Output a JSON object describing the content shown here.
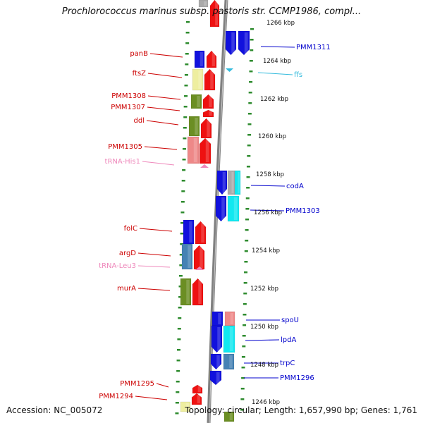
{
  "title": "Prochlorococcus marinus subsp. pastoris str. CCMP1986, compl...",
  "footer": {
    "accession": "Accession: NC_005072",
    "topology": "Topology: circular; Length: 1,657,990 bp; Genes: 1,761"
  },
  "colors": {
    "tick": "#2e8b2e",
    "backbone": "#808080",
    "label_red": "#cc0000",
    "label_blue": "#0000cc",
    "label_pink": "#ee88bb",
    "label_cyan": "#33bbdd",
    "gene_red": "#ee1111",
    "gene_blue": "#1111dd",
    "gene_green": "#6b8e23",
    "gene_yellow": "#eeeea0",
    "gene_pink": "#ee8888",
    "gene_cyan": "#11e8f0",
    "gene_steel": "#4682b4",
    "gene_gray": "#aaaaaa"
  },
  "scale_ticks": [
    "1266 kbp",
    "1264 kbp",
    "1262 kbp",
    "1260 kbp",
    "1258 kbp",
    "1256 kbp",
    "1254 kbp",
    "1252 kbp",
    "1250 kbp",
    "1248 kbp",
    "1246 kbp"
  ],
  "left_labels": [
    {
      "text": "panB",
      "color": "red"
    },
    {
      "text": "ftsZ",
      "color": "red"
    },
    {
      "text": "PMM1308",
      "color": "red"
    },
    {
      "text": "PMM1307",
      "color": "red"
    },
    {
      "text": "ddl",
      "color": "red"
    },
    {
      "text": "PMM1305",
      "color": "red"
    },
    {
      "text": "tRNA-His1",
      "color": "pink"
    },
    {
      "text": "folC",
      "color": "red"
    },
    {
      "text": "argD",
      "color": "red"
    },
    {
      "text": "tRNA-Leu3",
      "color": "pink"
    },
    {
      "text": "murA",
      "color": "red"
    },
    {
      "text": "PMM1295",
      "color": "red"
    },
    {
      "text": "PMM1294",
      "color": "red"
    }
  ],
  "right_labels": [
    {
      "text": "PMM1311",
      "color": "blue"
    },
    {
      "text": "ffs",
      "color": "cyan"
    },
    {
      "text": "codA",
      "color": "blue"
    },
    {
      "text": "PMM1303",
      "color": "blue"
    },
    {
      "text": "spoU",
      "color": "blue"
    },
    {
      "text": "lpdA",
      "color": "blue"
    },
    {
      "text": "trpC",
      "color": "blue"
    },
    {
      "text": "PMM1296",
      "color": "blue"
    }
  ]
}
